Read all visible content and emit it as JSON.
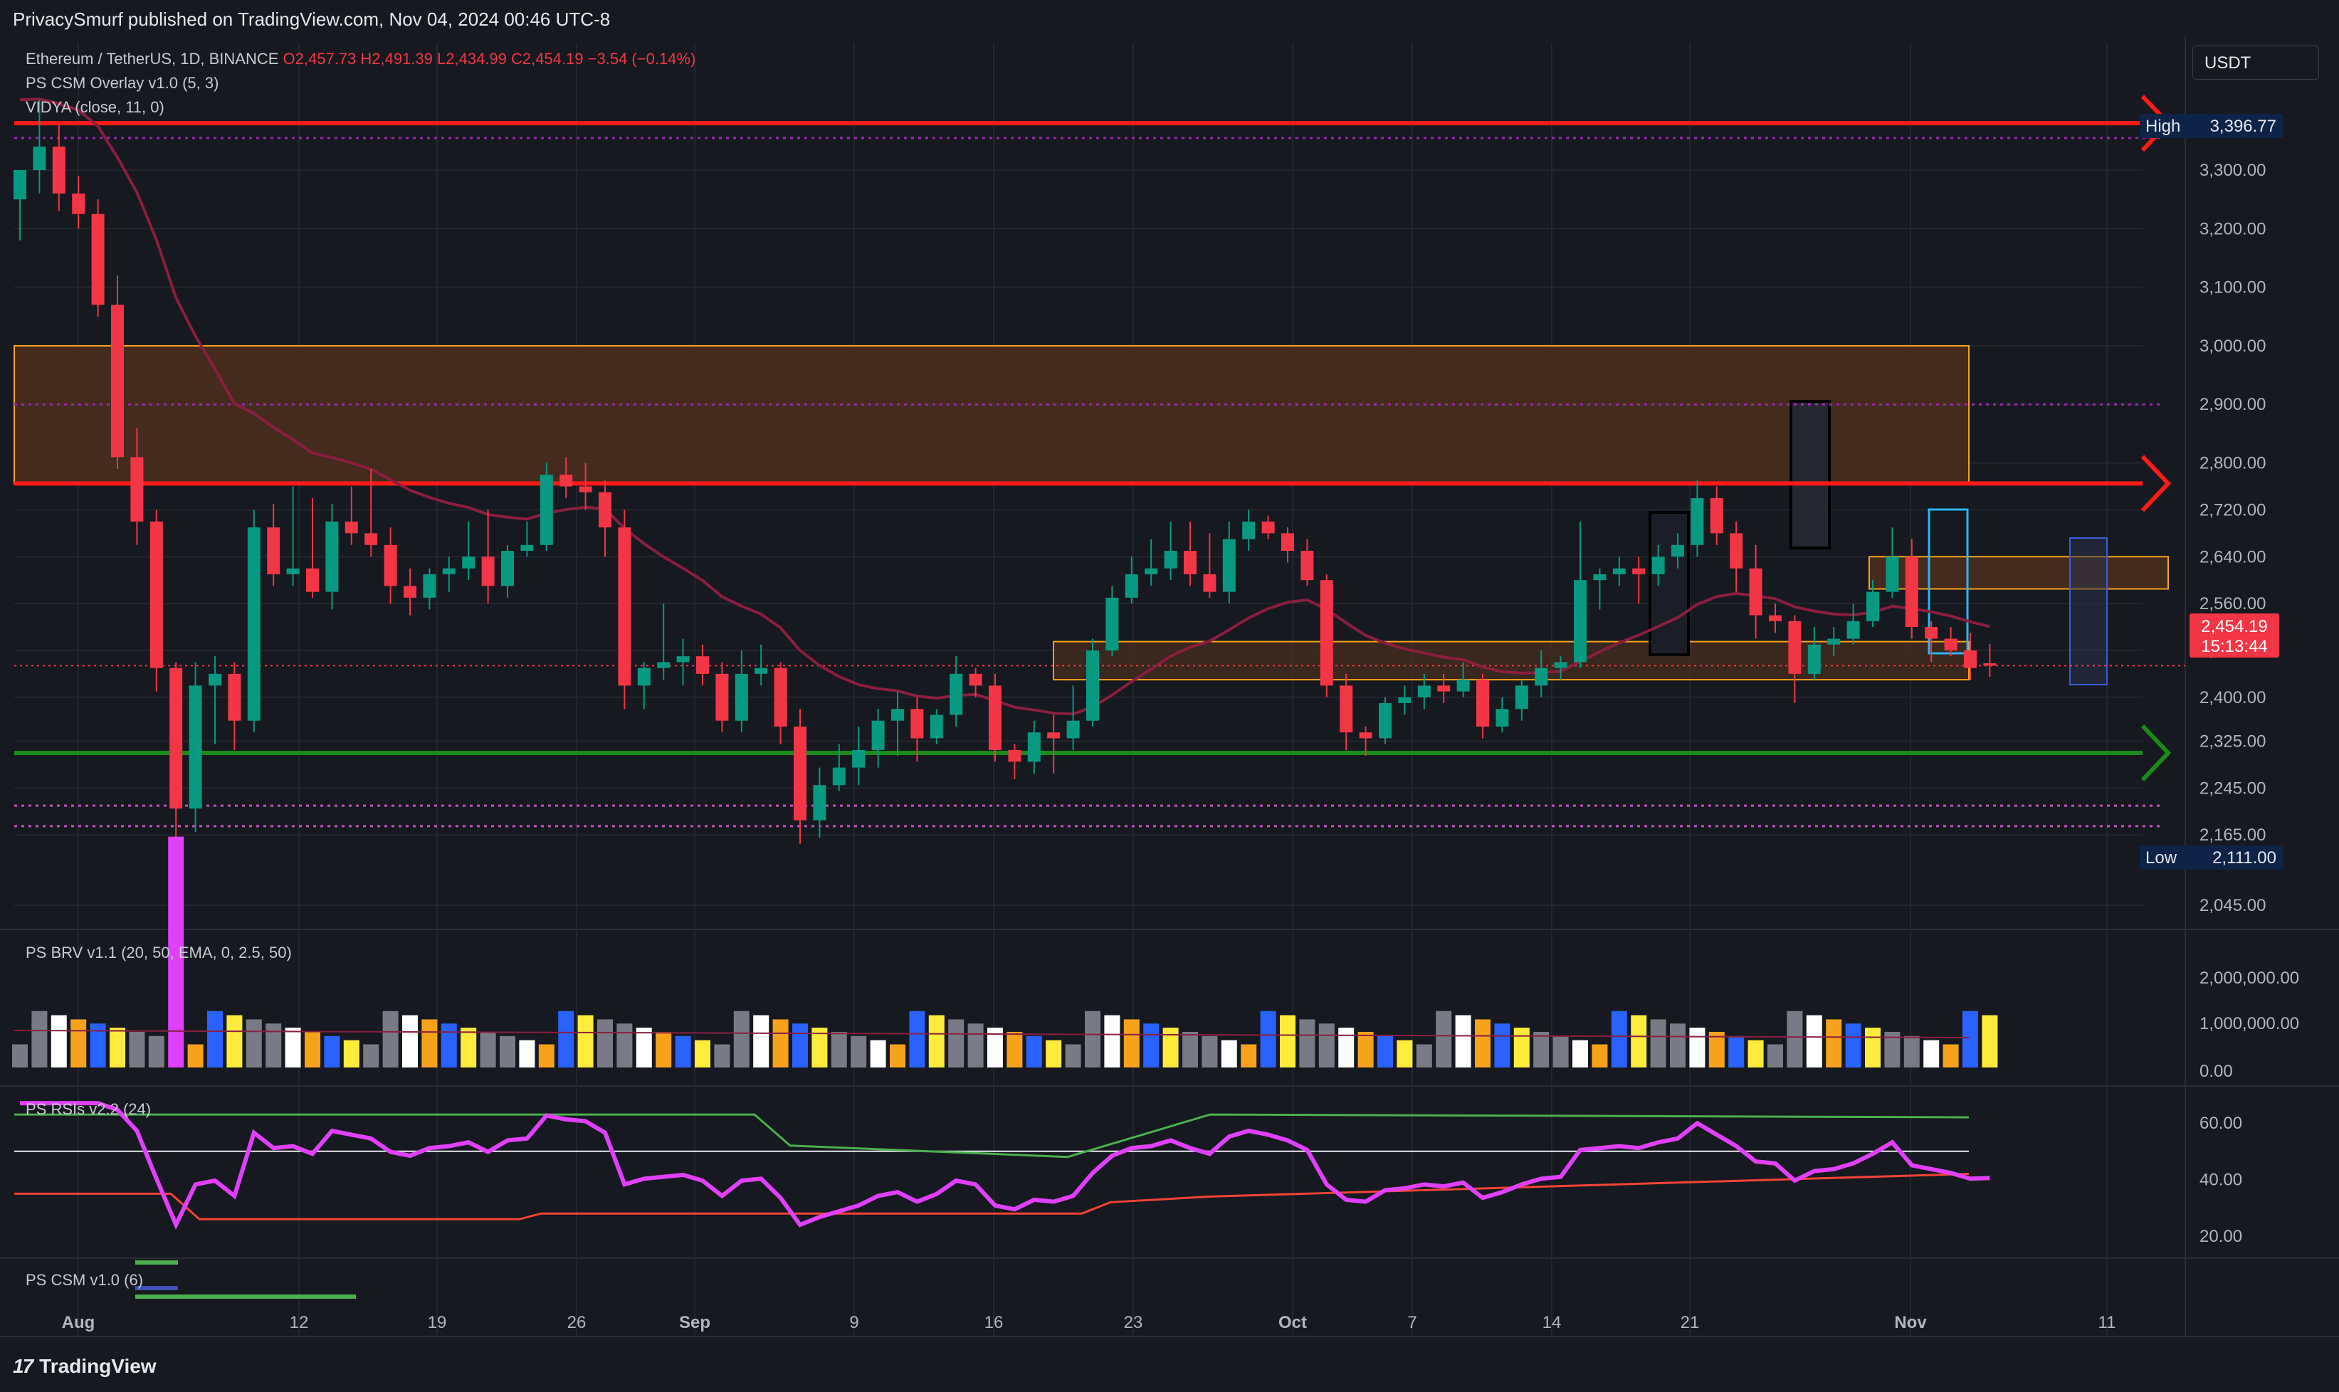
{
  "header": {
    "published": "PrivacySmurf published on TradingView.com, Nov 04, 2024 00:46 UTC-8",
    "currency_button": "USDT",
    "brand": "TradingView"
  },
  "legend": {
    "symbol": "Ethereum / TetherUS, 1D, BINANCE",
    "ohlc": "O2,457.73  H2,491.39  L2,434.99  C2,454.19  −3.54 (−0.14%)",
    "overlay1": "PS CSM Overlay v1.0 (5, 3)",
    "overlay2": "VIDYA (close, 11, 0)",
    "pane_brv": "PS BRV v1.1 (20, 50, EMA, 0, 2.5, 50)",
    "pane_rsi": "PS RSIs v2.2 (24)",
    "pane_csm": "PS CSM v1.0 (6)"
  },
  "colors": {
    "background": "#16191f",
    "grid": "#22262f",
    "up": "#089981",
    "down": "#f23645",
    "resistance": "#ff1a1a",
    "support": "#1a8a1a",
    "zone_fill": "#4a2d1e",
    "zone_border": "#f7a21b",
    "vidya_down": "#8b1e3f",
    "vidya_up": "#2962ff",
    "rsi_line": "#e040fb",
    "dotted": "#9c27b0"
  },
  "chart_data": [
    {
      "type": "candlestick",
      "title": "Ethereum / TetherUS, 1D, BINANCE",
      "price_axis": [
        "3,300.00",
        "3,200.00",
        "3,100.00",
        "3,000.00",
        "2,900.00",
        "2,800.00",
        "2,720.00",
        "2,640.00",
        "2,560.00",
        "2,480.00",
        "2,400.00",
        "2,325.00",
        "2,245.00",
        "2,165.00",
        "2,045.00"
      ],
      "time_axis": [
        "Aug",
        "12",
        "19",
        "26",
        "Sep",
        "9",
        "16",
        "23",
        "Oct",
        "7",
        "14",
        "21",
        "Nov",
        "11"
      ],
      "last_price": "2,454.19",
      "countdown": "15:13:44",
      "high_label": "High",
      "high_value": "3,396.77",
      "low_label": "Low",
      "low_value": "2,111.00",
      "ylim": [
        2000,
        3450
      ],
      "ohlc": [
        [
          3250,
          3290,
          3180,
          3300
        ],
        [
          3300,
          3420,
          3260,
          3340
        ],
        [
          3340,
          3380,
          3230,
          3260
        ],
        [
          3260,
          3290,
          3200,
          3225
        ],
        [
          3225,
          3250,
          3050,
          3070
        ],
        [
          3070,
          3120,
          2790,
          2810
        ],
        [
          2810,
          2860,
          2660,
          2700
        ],
        [
          2700,
          2720,
          2410,
          2450
        ],
        [
          2450,
          2460,
          2090,
          2210
        ],
        [
          2210,
          2460,
          2170,
          2420
        ],
        [
          2420,
          2470,
          2320,
          2440
        ],
        [
          2440,
          2460,
          2310,
          2360
        ],
        [
          2360,
          2720,
          2340,
          2690
        ],
        [
          2690,
          2730,
          2590,
          2610
        ],
        [
          2610,
          2760,
          2590,
          2620
        ],
        [
          2620,
          2740,
          2570,
          2580
        ],
        [
          2580,
          2730,
          2550,
          2700
        ],
        [
          2700,
          2760,
          2660,
          2680
        ],
        [
          2680,
          2790,
          2640,
          2660
        ],
        [
          2660,
          2690,
          2560,
          2590
        ],
        [
          2590,
          2620,
          2540,
          2570
        ],
        [
          2570,
          2620,
          2550,
          2610
        ],
        [
          2610,
          2640,
          2580,
          2620
        ],
        [
          2620,
          2700,
          2600,
          2640
        ],
        [
          2640,
          2720,
          2560,
          2590
        ],
        [
          2590,
          2660,
          2570,
          2650
        ],
        [
          2650,
          2700,
          2640,
          2660
        ],
        [
          2660,
          2800,
          2650,
          2780
        ],
        [
          2780,
          2810,
          2740,
          2760
        ],
        [
          2760,
          2800,
          2720,
          2750
        ],
        [
          2750,
          2770,
          2640,
          2690
        ],
        [
          2690,
          2720,
          2380,
          2420
        ],
        [
          2420,
          2460,
          2380,
          2450
        ],
        [
          2450,
          2560,
          2430,
          2460
        ],
        [
          2460,
          2500,
          2420,
          2470
        ],
        [
          2470,
          2490,
          2420,
          2440
        ],
        [
          2440,
          2460,
          2340,
          2360
        ],
        [
          2360,
          2480,
          2340,
          2440
        ],
        [
          2440,
          2490,
          2420,
          2450
        ],
        [
          2450,
          2460,
          2320,
          2350
        ],
        [
          2350,
          2380,
          2150,
          2190
        ],
        [
          2190,
          2280,
          2160,
          2250
        ],
        [
          2250,
          2320,
          2240,
          2280
        ],
        [
          2280,
          2350,
          2250,
          2310
        ],
        [
          2310,
          2380,
          2280,
          2360
        ],
        [
          2360,
          2410,
          2300,
          2380
        ],
        [
          2380,
          2400,
          2290,
          2330
        ],
        [
          2330,
          2380,
          2320,
          2370
        ],
        [
          2370,
          2470,
          2350,
          2440
        ],
        [
          2440,
          2450,
          2400,
          2420
        ],
        [
          2420,
          2440,
          2290,
          2310
        ],
        [
          2310,
          2320,
          2260,
          2290
        ],
        [
          2290,
          2360,
          2270,
          2340
        ],
        [
          2340,
          2370,
          2270,
          2330
        ],
        [
          2330,
          2420,
          2310,
          2360
        ],
        [
          2360,
          2500,
          2350,
          2480
        ],
        [
          2480,
          2590,
          2470,
          2570
        ],
        [
          2570,
          2640,
          2560,
          2610
        ],
        [
          2610,
          2670,
          2590,
          2620
        ],
        [
          2620,
          2700,
          2600,
          2650
        ],
        [
          2650,
          2700,
          2590,
          2610
        ],
        [
          2610,
          2680,
          2570,
          2580
        ],
        [
          2580,
          2700,
          2560,
          2670
        ],
        [
          2670,
          2720,
          2650,
          2700
        ],
        [
          2700,
          2710,
          2670,
          2680
        ],
        [
          2680,
          2690,
          2630,
          2650
        ],
        [
          2650,
          2670,
          2590,
          2600
        ],
        [
          2600,
          2610,
          2400,
          2420
        ],
        [
          2420,
          2440,
          2310,
          2340
        ],
        [
          2340,
          2350,
          2300,
          2330
        ],
        [
          2330,
          2400,
          2320,
          2390
        ],
        [
          2390,
          2420,
          2370,
          2400
        ],
        [
          2400,
          2440,
          2380,
          2420
        ],
        [
          2420,
          2440,
          2390,
          2410
        ],
        [
          2410,
          2460,
          2400,
          2430
        ],
        [
          2430,
          2440,
          2330,
          2350
        ],
        [
          2350,
          2400,
          2340,
          2380
        ],
        [
          2380,
          2430,
          2360,
          2420
        ],
        [
          2420,
          2480,
          2400,
          2450
        ],
        [
          2450,
          2470,
          2430,
          2460
        ],
        [
          2460,
          2700,
          2450,
          2600
        ],
        [
          2600,
          2620,
          2550,
          2610
        ],
        [
          2610,
          2640,
          2590,
          2620
        ],
        [
          2620,
          2640,
          2560,
          2610
        ],
        [
          2610,
          2660,
          2590,
          2640
        ],
        [
          2640,
          2680,
          2620,
          2660
        ],
        [
          2660,
          2770,
          2640,
          2740
        ],
        [
          2740,
          2760,
          2660,
          2680
        ],
        [
          2680,
          2700,
          2580,
          2620
        ],
        [
          2620,
          2660,
          2500,
          2540
        ],
        [
          2540,
          2560,
          2510,
          2530
        ],
        [
          2530,
          2540,
          2390,
          2440
        ],
        [
          2440,
          2520,
          2430,
          2490
        ],
        [
          2490,
          2520,
          2470,
          2500
        ],
        [
          2500,
          2560,
          2490,
          2530
        ],
        [
          2530,
          2600,
          2520,
          2580
        ],
        [
          2580,
          2690,
          2570,
          2640
        ],
        [
          2640,
          2670,
          2500,
          2520
        ],
        [
          2520,
          2530,
          2460,
          2500
        ],
        [
          2500,
          2520,
          2470,
          2480
        ],
        [
          2480,
          2510,
          2430,
          2450
        ],
        [
          2458,
          2491,
          2435,
          2454
        ]
      ],
      "resistance_levels": [
        3380,
        2765
      ],
      "support_levels": [
        2305
      ],
      "supply_zones": [
        [
          2765,
          3000
        ],
        [
          2585,
          2640
        ]
      ],
      "demand_zones": [
        [
          2430,
          2495
        ]
      ]
    },
    {
      "type": "bar",
      "title": "PS BRV v1.1 (20, 50, EMA, 0, 2.5, 50)",
      "axis": [
        "2,000,000.00",
        "1,000,000.00",
        "0.00"
      ],
      "ylim": [
        0,
        2500000
      ]
    },
    {
      "type": "line",
      "title": "PS RSIs v2.2 (24)",
      "axis": [
        "60.00",
        "40.00",
        "20.00"
      ],
      "ylim": [
        10,
        70
      ]
    },
    {
      "type": "line",
      "title": "PS CSM v1.0 (6)"
    }
  ]
}
